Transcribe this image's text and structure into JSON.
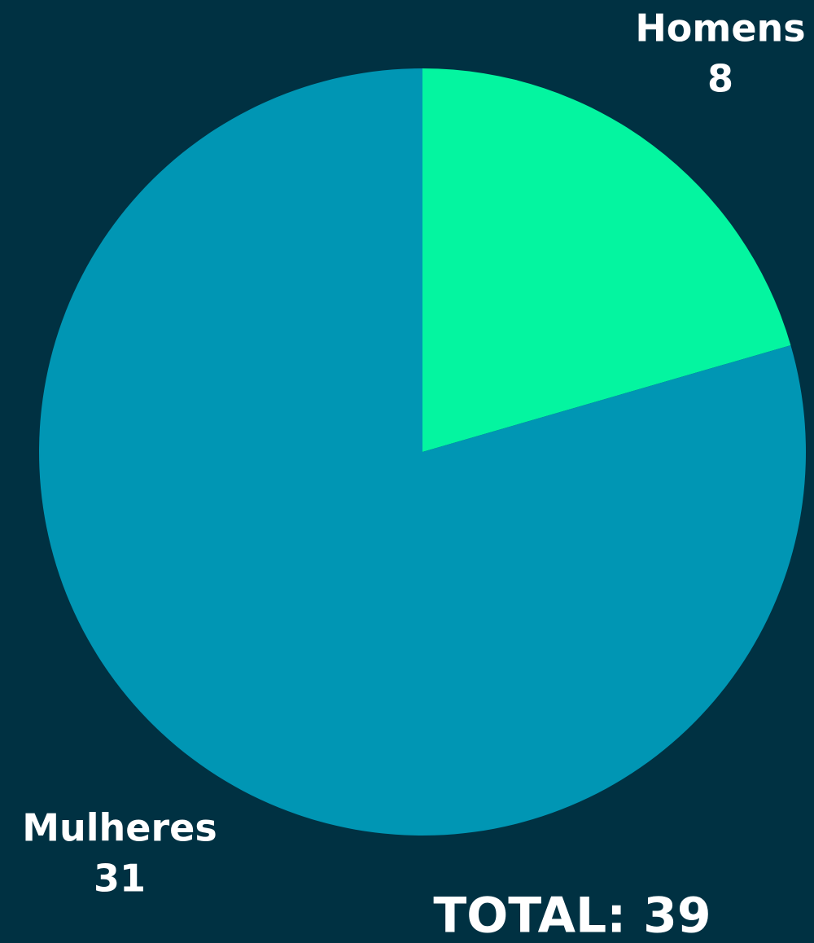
{
  "chart_data": {
    "type": "pie",
    "categories": [
      "Homens",
      "Mulheres"
    ],
    "values": [
      8,
      31
    ],
    "colors": [
      "#04f5a0",
      "#0096b4"
    ],
    "annotation": "TOTAL: 39"
  }
}
